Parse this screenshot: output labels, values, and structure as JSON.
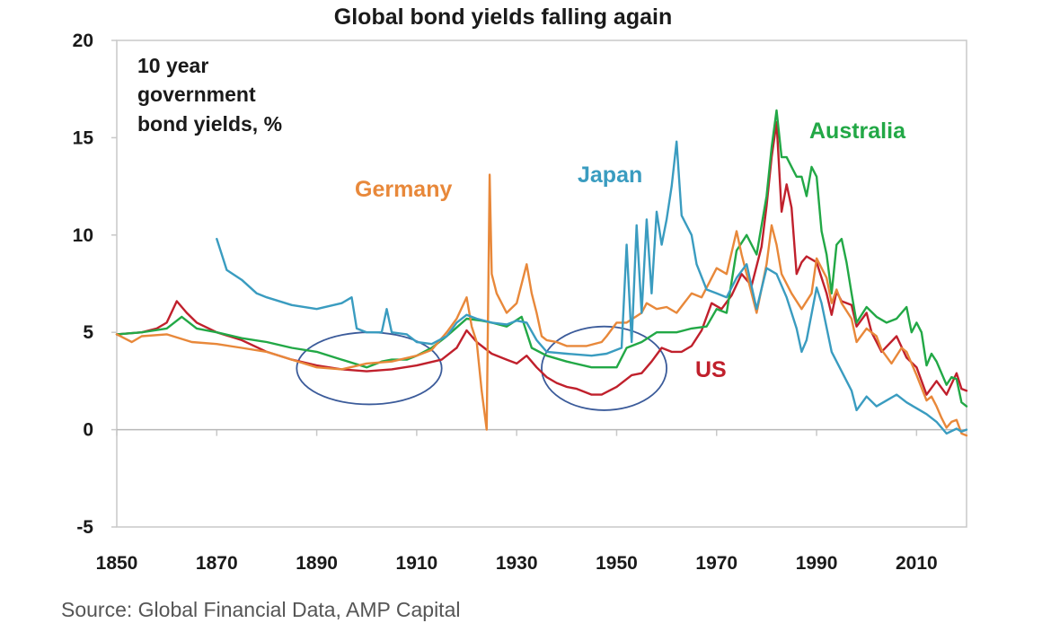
{
  "chart_data": {
    "type": "line",
    "title": "Global bond yields falling again",
    "annotation": "10 year government bond yields, %",
    "annotation_lines": [
      "10 year",
      "government",
      "bond yields, %"
    ],
    "source": "Source: Global Financial Data, AMP Capital",
    "xlabel": "",
    "ylabel": "",
    "xlim": [
      1850,
      2020
    ],
    "ylim": [
      -5,
      20
    ],
    "x_ticks": [
      1850,
      1870,
      1890,
      1910,
      1930,
      1950,
      1970,
      1990,
      2010
    ],
    "y_ticks": [
      -5,
      0,
      5,
      10,
      15,
      20
    ],
    "grid": false,
    "legend": "labels placed next to series",
    "highlight_ellipses": [
      {
        "x_range": [
          1886,
          1915
        ],
        "y_range": [
          1.3,
          5
        ]
      },
      {
        "x_range": [
          1935,
          1960
        ],
        "y_range": [
          1.0,
          5.3
        ]
      }
    ],
    "series": [
      {
        "name": "US",
        "color": "#c0202c",
        "points": [
          [
            1850,
            4.9
          ],
          [
            1855,
            5.0
          ],
          [
            1858,
            5.2
          ],
          [
            1860,
            5.5
          ],
          [
            1862,
            6.6
          ],
          [
            1864,
            6.0
          ],
          [
            1866,
            5.5
          ],
          [
            1870,
            5.0
          ],
          [
            1875,
            4.6
          ],
          [
            1880,
            4.0
          ],
          [
            1885,
            3.6
          ],
          [
            1890,
            3.3
          ],
          [
            1895,
            3.1
          ],
          [
            1900,
            3.0
          ],
          [
            1905,
            3.1
          ],
          [
            1910,
            3.3
          ],
          [
            1915,
            3.6
          ],
          [
            1918,
            4.2
          ],
          [
            1920,
            5.1
          ],
          [
            1922,
            4.5
          ],
          [
            1925,
            3.9
          ],
          [
            1928,
            3.6
          ],
          [
            1930,
            3.4
          ],
          [
            1932,
            3.8
          ],
          [
            1934,
            3.2
          ],
          [
            1936,
            2.7
          ],
          [
            1938,
            2.4
          ],
          [
            1940,
            2.2
          ],
          [
            1942,
            2.1
          ],
          [
            1945,
            1.8
          ],
          [
            1947,
            1.8
          ],
          [
            1950,
            2.2
          ],
          [
            1953,
            2.8
          ],
          [
            1955,
            2.9
          ],
          [
            1957,
            3.5
          ],
          [
            1959,
            4.2
          ],
          [
            1961,
            4.0
          ],
          [
            1963,
            4.0
          ],
          [
            1965,
            4.3
          ],
          [
            1967,
            5.1
          ],
          [
            1969,
            6.5
          ],
          [
            1971,
            6.2
          ],
          [
            1973,
            6.9
          ],
          [
            1975,
            8.0
          ],
          [
            1977,
            7.4
          ],
          [
            1979,
            9.4
          ],
          [
            1980,
            11.5
          ],
          [
            1981,
            14.0
          ],
          [
            1982,
            15.8
          ],
          [
            1983,
            11.2
          ],
          [
            1984,
            12.6
          ],
          [
            1985,
            11.4
          ],
          [
            1986,
            8.0
          ],
          [
            1987,
            8.6
          ],
          [
            1988,
            8.9
          ],
          [
            1990,
            8.6
          ],
          [
            1992,
            7.0
          ],
          [
            1993,
            5.9
          ],
          [
            1994,
            7.1
          ],
          [
            1995,
            6.6
          ],
          [
            1997,
            6.4
          ],
          [
            1998,
            5.3
          ],
          [
            2000,
            6.0
          ],
          [
            2001,
            5.0
          ],
          [
            2003,
            4.0
          ],
          [
            2006,
            4.8
          ],
          [
            2008,
            3.7
          ],
          [
            2010,
            3.2
          ],
          [
            2012,
            1.8
          ],
          [
            2014,
            2.5
          ],
          [
            2016,
            1.8
          ],
          [
            2018,
            2.9
          ],
          [
            2019,
            2.1
          ],
          [
            2020,
            2.0
          ]
        ]
      },
      {
        "name": "Australia",
        "color": "#22a846",
        "points": [
          [
            1850,
            4.9
          ],
          [
            1855,
            5.0
          ],
          [
            1860,
            5.2
          ],
          [
            1863,
            5.8
          ],
          [
            1866,
            5.2
          ],
          [
            1870,
            5.0
          ],
          [
            1875,
            4.7
          ],
          [
            1880,
            4.5
          ],
          [
            1885,
            4.2
          ],
          [
            1890,
            4.0
          ],
          [
            1895,
            3.6
          ],
          [
            1900,
            3.2
          ],
          [
            1903,
            3.5
          ],
          [
            1905,
            3.6
          ],
          [
            1908,
            3.6
          ],
          [
            1910,
            3.8
          ],
          [
            1913,
            4.2
          ],
          [
            1916,
            4.8
          ],
          [
            1920,
            5.7
          ],
          [
            1923,
            5.6
          ],
          [
            1925,
            5.5
          ],
          [
            1928,
            5.3
          ],
          [
            1931,
            5.8
          ],
          [
            1933,
            4.2
          ],
          [
            1936,
            3.8
          ],
          [
            1940,
            3.5
          ],
          [
            1945,
            3.2
          ],
          [
            1948,
            3.2
          ],
          [
            1950,
            3.2
          ],
          [
            1952,
            4.2
          ],
          [
            1955,
            4.5
          ],
          [
            1958,
            5.0
          ],
          [
            1962,
            5.0
          ],
          [
            1965,
            5.2
          ],
          [
            1968,
            5.3
          ],
          [
            1970,
            6.2
          ],
          [
            1972,
            6.0
          ],
          [
            1974,
            9.2
          ],
          [
            1976,
            10.0
          ],
          [
            1978,
            9.0
          ],
          [
            1980,
            12.0
          ],
          [
            1981,
            14.5
          ],
          [
            1982,
            16.4
          ],
          [
            1983,
            14.0
          ],
          [
            1984,
            14.0
          ],
          [
            1985,
            13.5
          ],
          [
            1986,
            13.0
          ],
          [
            1987,
            13.0
          ],
          [
            1988,
            12.0
          ],
          [
            1989,
            13.5
          ],
          [
            1990,
            13.0
          ],
          [
            1991,
            10.2
          ],
          [
            1992,
            9.0
          ],
          [
            1993,
            7.0
          ],
          [
            1994,
            9.5
          ],
          [
            1995,
            9.8
          ],
          [
            1996,
            8.6
          ],
          [
            1997,
            7.0
          ],
          [
            1998,
            5.5
          ],
          [
            2000,
            6.3
          ],
          [
            2002,
            5.8
          ],
          [
            2004,
            5.5
          ],
          [
            2006,
            5.7
          ],
          [
            2008,
            6.3
          ],
          [
            2009,
            5.0
          ],
          [
            2010,
            5.5
          ],
          [
            2011,
            5.0
          ],
          [
            2012,
            3.3
          ],
          [
            2013,
            3.9
          ],
          [
            2014,
            3.5
          ],
          [
            2016,
            2.3
          ],
          [
            2017,
            2.7
          ],
          [
            2018,
            2.6
          ],
          [
            2019,
            1.4
          ],
          [
            2020,
            1.2
          ]
        ]
      },
      {
        "name": "Germany",
        "color": "#e8883a",
        "points": [
          [
            1850,
            4.9
          ],
          [
            1853,
            4.5
          ],
          [
            1855,
            4.8
          ],
          [
            1860,
            4.9
          ],
          [
            1865,
            4.5
          ],
          [
            1870,
            4.4
          ],
          [
            1875,
            4.2
          ],
          [
            1880,
            4.0
          ],
          [
            1885,
            3.6
          ],
          [
            1890,
            3.2
          ],
          [
            1895,
            3.1
          ],
          [
            1900,
            3.4
          ],
          [
            1905,
            3.5
          ],
          [
            1910,
            3.8
          ],
          [
            1913,
            4.1
          ],
          [
            1916,
            5.0
          ],
          [
            1918,
            5.7
          ],
          [
            1920,
            6.8
          ],
          [
            1921,
            5.3
          ],
          [
            1922,
            4.5
          ],
          [
            1923,
            2.0
          ],
          [
            1924,
            0.0
          ],
          [
            1924.6,
            13.1
          ],
          [
            1925,
            8.0
          ],
          [
            1926,
            7.0
          ],
          [
            1928,
            6.0
          ],
          [
            1930,
            6.5
          ],
          [
            1932,
            8.5
          ],
          [
            1933,
            7.0
          ],
          [
            1934,
            6.0
          ],
          [
            1935,
            4.8
          ],
          [
            1936,
            4.6
          ],
          [
            1938,
            4.5
          ],
          [
            1940,
            4.3
          ],
          [
            1944,
            4.3
          ],
          [
            1947,
            4.5
          ],
          [
            1948,
            4.8
          ],
          [
            1950,
            5.5
          ],
          [
            1952,
            5.5
          ],
          [
            1955,
            6.0
          ],
          [
            1956,
            6.5
          ],
          [
            1958,
            6.2
          ],
          [
            1960,
            6.3
          ],
          [
            1962,
            6.0
          ],
          [
            1965,
            7.0
          ],
          [
            1967,
            6.8
          ],
          [
            1970,
            8.3
          ],
          [
            1972,
            8.0
          ],
          [
            1974,
            10.2
          ],
          [
            1975,
            9.0
          ],
          [
            1978,
            6.0
          ],
          [
            1980,
            8.5
          ],
          [
            1981,
            10.5
          ],
          [
            1982,
            9.5
          ],
          [
            1983,
            8.0
          ],
          [
            1985,
            7.0
          ],
          [
            1987,
            6.2
          ],
          [
            1989,
            7.0
          ],
          [
            1990,
            8.8
          ],
          [
            1992,
            7.8
          ],
          [
            1993,
            6.5
          ],
          [
            1994,
            7.2
          ],
          [
            1995,
            6.5
          ],
          [
            1997,
            5.7
          ],
          [
            1998,
            4.5
          ],
          [
            2000,
            5.2
          ],
          [
            2002,
            4.8
          ],
          [
            2003,
            4.1
          ],
          [
            2005,
            3.4
          ],
          [
            2007,
            4.2
          ],
          [
            2008,
            4.0
          ],
          [
            2010,
            2.8
          ],
          [
            2012,
            1.5
          ],
          [
            2013,
            1.7
          ],
          [
            2014,
            1.2
          ],
          [
            2015,
            0.6
          ],
          [
            2016,
            0.1
          ],
          [
            2017,
            0.4
          ],
          [
            2018,
            0.5
          ],
          [
            2019,
            -0.2
          ],
          [
            2020,
            -0.3
          ]
        ]
      },
      {
        "name": "Japan",
        "color": "#3a9cc0",
        "points": [
          [
            1870,
            9.8
          ],
          [
            1871,
            9.0
          ],
          [
            1872,
            8.2
          ],
          [
            1875,
            7.7
          ],
          [
            1878,
            7.0
          ],
          [
            1880,
            6.8
          ],
          [
            1885,
            6.4
          ],
          [
            1890,
            6.2
          ],
          [
            1895,
            6.5
          ],
          [
            1897,
            6.8
          ],
          [
            1898,
            5.2
          ],
          [
            1900,
            5.0
          ],
          [
            1903,
            5.0
          ],
          [
            1904,
            6.2
          ],
          [
            1905,
            5.0
          ],
          [
            1908,
            4.9
          ],
          [
            1910,
            4.5
          ],
          [
            1913,
            4.4
          ],
          [
            1916,
            4.8
          ],
          [
            1918,
            5.5
          ],
          [
            1920,
            5.9
          ],
          [
            1922,
            5.7
          ],
          [
            1925,
            5.5
          ],
          [
            1928,
            5.4
          ],
          [
            1930,
            5.6
          ],
          [
            1932,
            5.5
          ],
          [
            1934,
            4.6
          ],
          [
            1936,
            4.0
          ],
          [
            1940,
            3.9
          ],
          [
            1945,
            3.8
          ],
          [
            1948,
            3.9
          ],
          [
            1951,
            4.2
          ],
          [
            1952,
            9.5
          ],
          [
            1953,
            4.5
          ],
          [
            1954,
            10.5
          ],
          [
            1955,
            6.0
          ],
          [
            1956,
            10.8
          ],
          [
            1957,
            7.0
          ],
          [
            1958,
            11.2
          ],
          [
            1959,
            9.5
          ],
          [
            1960,
            10.8
          ],
          [
            1961,
            12.5
          ],
          [
            1962,
            14.8
          ],
          [
            1963,
            11.0
          ],
          [
            1965,
            10.0
          ],
          [
            1966,
            8.5
          ],
          [
            1968,
            7.2
          ],
          [
            1970,
            7.0
          ],
          [
            1972,
            6.8
          ],
          [
            1974,
            7.8
          ],
          [
            1976,
            8.5
          ],
          [
            1978,
            6.2
          ],
          [
            1980,
            8.3
          ],
          [
            1982,
            8.0
          ],
          [
            1984,
            6.8
          ],
          [
            1986,
            5.2
          ],
          [
            1987,
            4.0
          ],
          [
            1988,
            4.6
          ],
          [
            1990,
            7.3
          ],
          [
            1991,
            6.5
          ],
          [
            1993,
            4.0
          ],
          [
            1995,
            3.0
          ],
          [
            1997,
            2.0
          ],
          [
            1998,
            1.0
          ],
          [
            2000,
            1.7
          ],
          [
            2002,
            1.2
          ],
          [
            2004,
            1.5
          ],
          [
            2006,
            1.8
          ],
          [
            2008,
            1.4
          ],
          [
            2010,
            1.1
          ],
          [
            2012,
            0.8
          ],
          [
            2014,
            0.4
          ],
          [
            2016,
            -0.2
          ],
          [
            2018,
            0.05
          ],
          [
            2019,
            -0.1
          ],
          [
            2020,
            0.0
          ]
        ]
      }
    ],
    "series_labels": [
      "Germany",
      "Japan",
      "Australia",
      "US"
    ]
  }
}
